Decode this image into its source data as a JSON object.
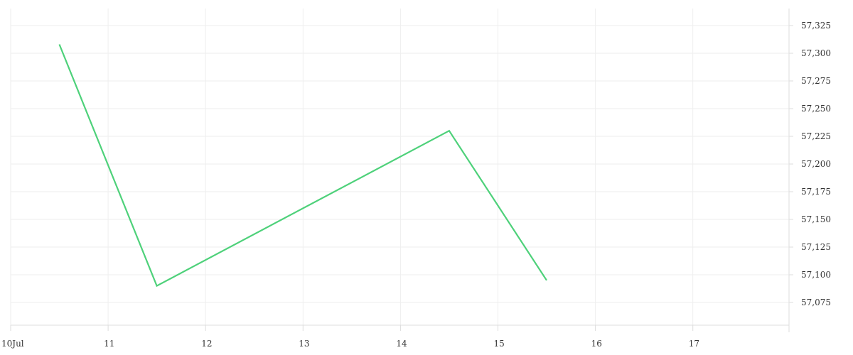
{
  "chart_data": {
    "type": "line",
    "title": "",
    "xlabel": "",
    "ylabel": "",
    "x_axis": {
      "type": "date",
      "range": [
        "2024-07-10",
        "2024-07-18"
      ],
      "ticks": [
        {
          "value": "2024-07-10",
          "label": "10Jul"
        },
        {
          "value": "2024-07-11",
          "label": "11"
        },
        {
          "value": "2024-07-12",
          "label": "12"
        },
        {
          "value": "2024-07-13",
          "label": "13"
        },
        {
          "value": "2024-07-14",
          "label": "14"
        },
        {
          "value": "2024-07-15",
          "label": "15"
        },
        {
          "value": "2024-07-16",
          "label": "16"
        },
        {
          "value": "2024-07-17",
          "label": "17"
        }
      ]
    },
    "y_axis": {
      "position": "right",
      "ylim": [
        57050,
        57335
      ],
      "ticks": [
        57075,
        57100,
        57125,
        57150,
        57175,
        57200,
        57225,
        57250,
        57275,
        57300,
        57325
      ],
      "tick_labels": [
        "57,075",
        "57,100",
        "57,125",
        "57,150",
        "57,175",
        "57,200",
        "57,225",
        "57,250",
        "57,275",
        "57,300",
        "57,325"
      ]
    },
    "grid": true,
    "legend": "none",
    "series": [
      {
        "color": "#4ed17a",
        "points": [
          {
            "x": "2024-07-10T12:00",
            "y": 57308
          },
          {
            "x": "2024-07-11T12:00",
            "y": 57090
          },
          {
            "x": "2024-07-14T12:00",
            "y": 57230
          },
          {
            "x": "2024-07-15T12:00",
            "y": 57095
          }
        ]
      }
    ]
  }
}
